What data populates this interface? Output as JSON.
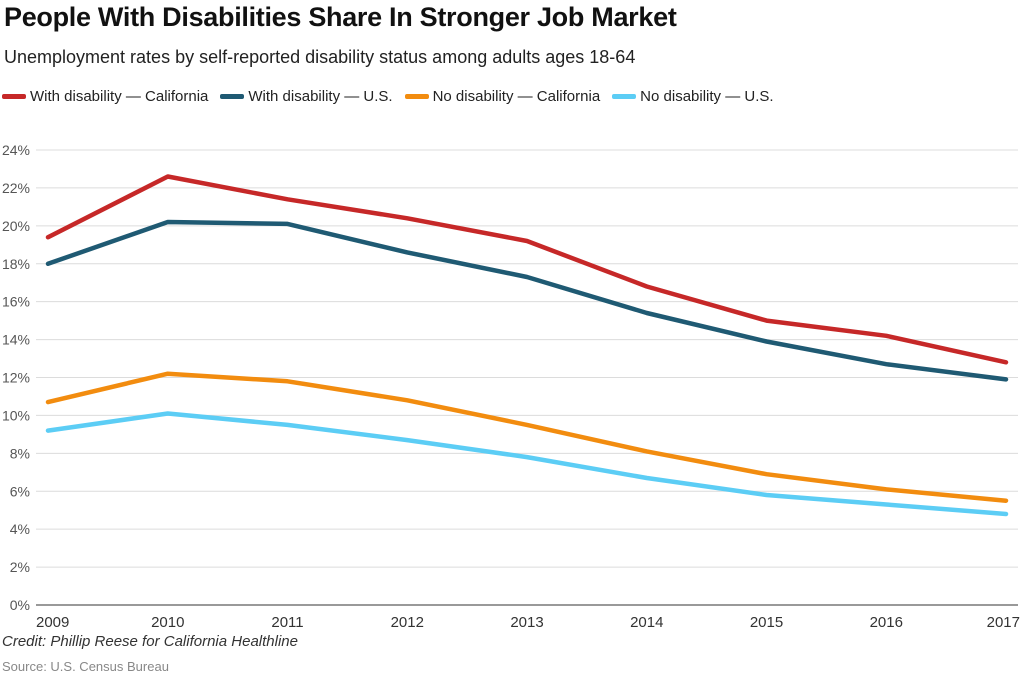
{
  "chart_data": {
    "type": "line",
    "title": "People With Disabilities Share In Stronger Job Market",
    "subtitle": "Unemployment rates by self-reported disability status among adults ages 18-64",
    "x": [
      "2009",
      "2010",
      "2011",
      "2012",
      "2013",
      "2014",
      "2015",
      "2016",
      "2017"
    ],
    "y_ticks": [
      "0%",
      "2%",
      "4%",
      "6%",
      "8%",
      "10%",
      "12%",
      "14%",
      "16%",
      "18%",
      "20%",
      "22%",
      "24%"
    ],
    "ylim": [
      0,
      24
    ],
    "grid": true,
    "legend_position": "top",
    "series": [
      {
        "name": "With disability — California",
        "color": "#c62828",
        "values": [
          19.4,
          22.6,
          21.4,
          20.4,
          19.2,
          16.8,
          15.0,
          14.2,
          12.8
        ]
      },
      {
        "name": "With disability — U.S.",
        "color": "#1f5a73",
        "values": [
          18.0,
          20.2,
          20.1,
          18.6,
          17.3,
          15.4,
          13.9,
          12.7,
          11.9
        ]
      },
      {
        "name": "No disability — California",
        "color": "#f28c0f",
        "values": [
          10.7,
          12.2,
          11.8,
          10.8,
          9.5,
          8.1,
          6.9,
          6.1,
          5.5
        ]
      },
      {
        "name": "No disability — U.S.",
        "color": "#5ccdf5",
        "values": [
          9.2,
          10.1,
          9.5,
          8.7,
          7.8,
          6.7,
          5.8,
          5.3,
          4.8
        ]
      }
    ]
  },
  "credit": "Credit: Phillip Reese for California Healthline",
  "source": "Source: U.S. Census Bureau"
}
